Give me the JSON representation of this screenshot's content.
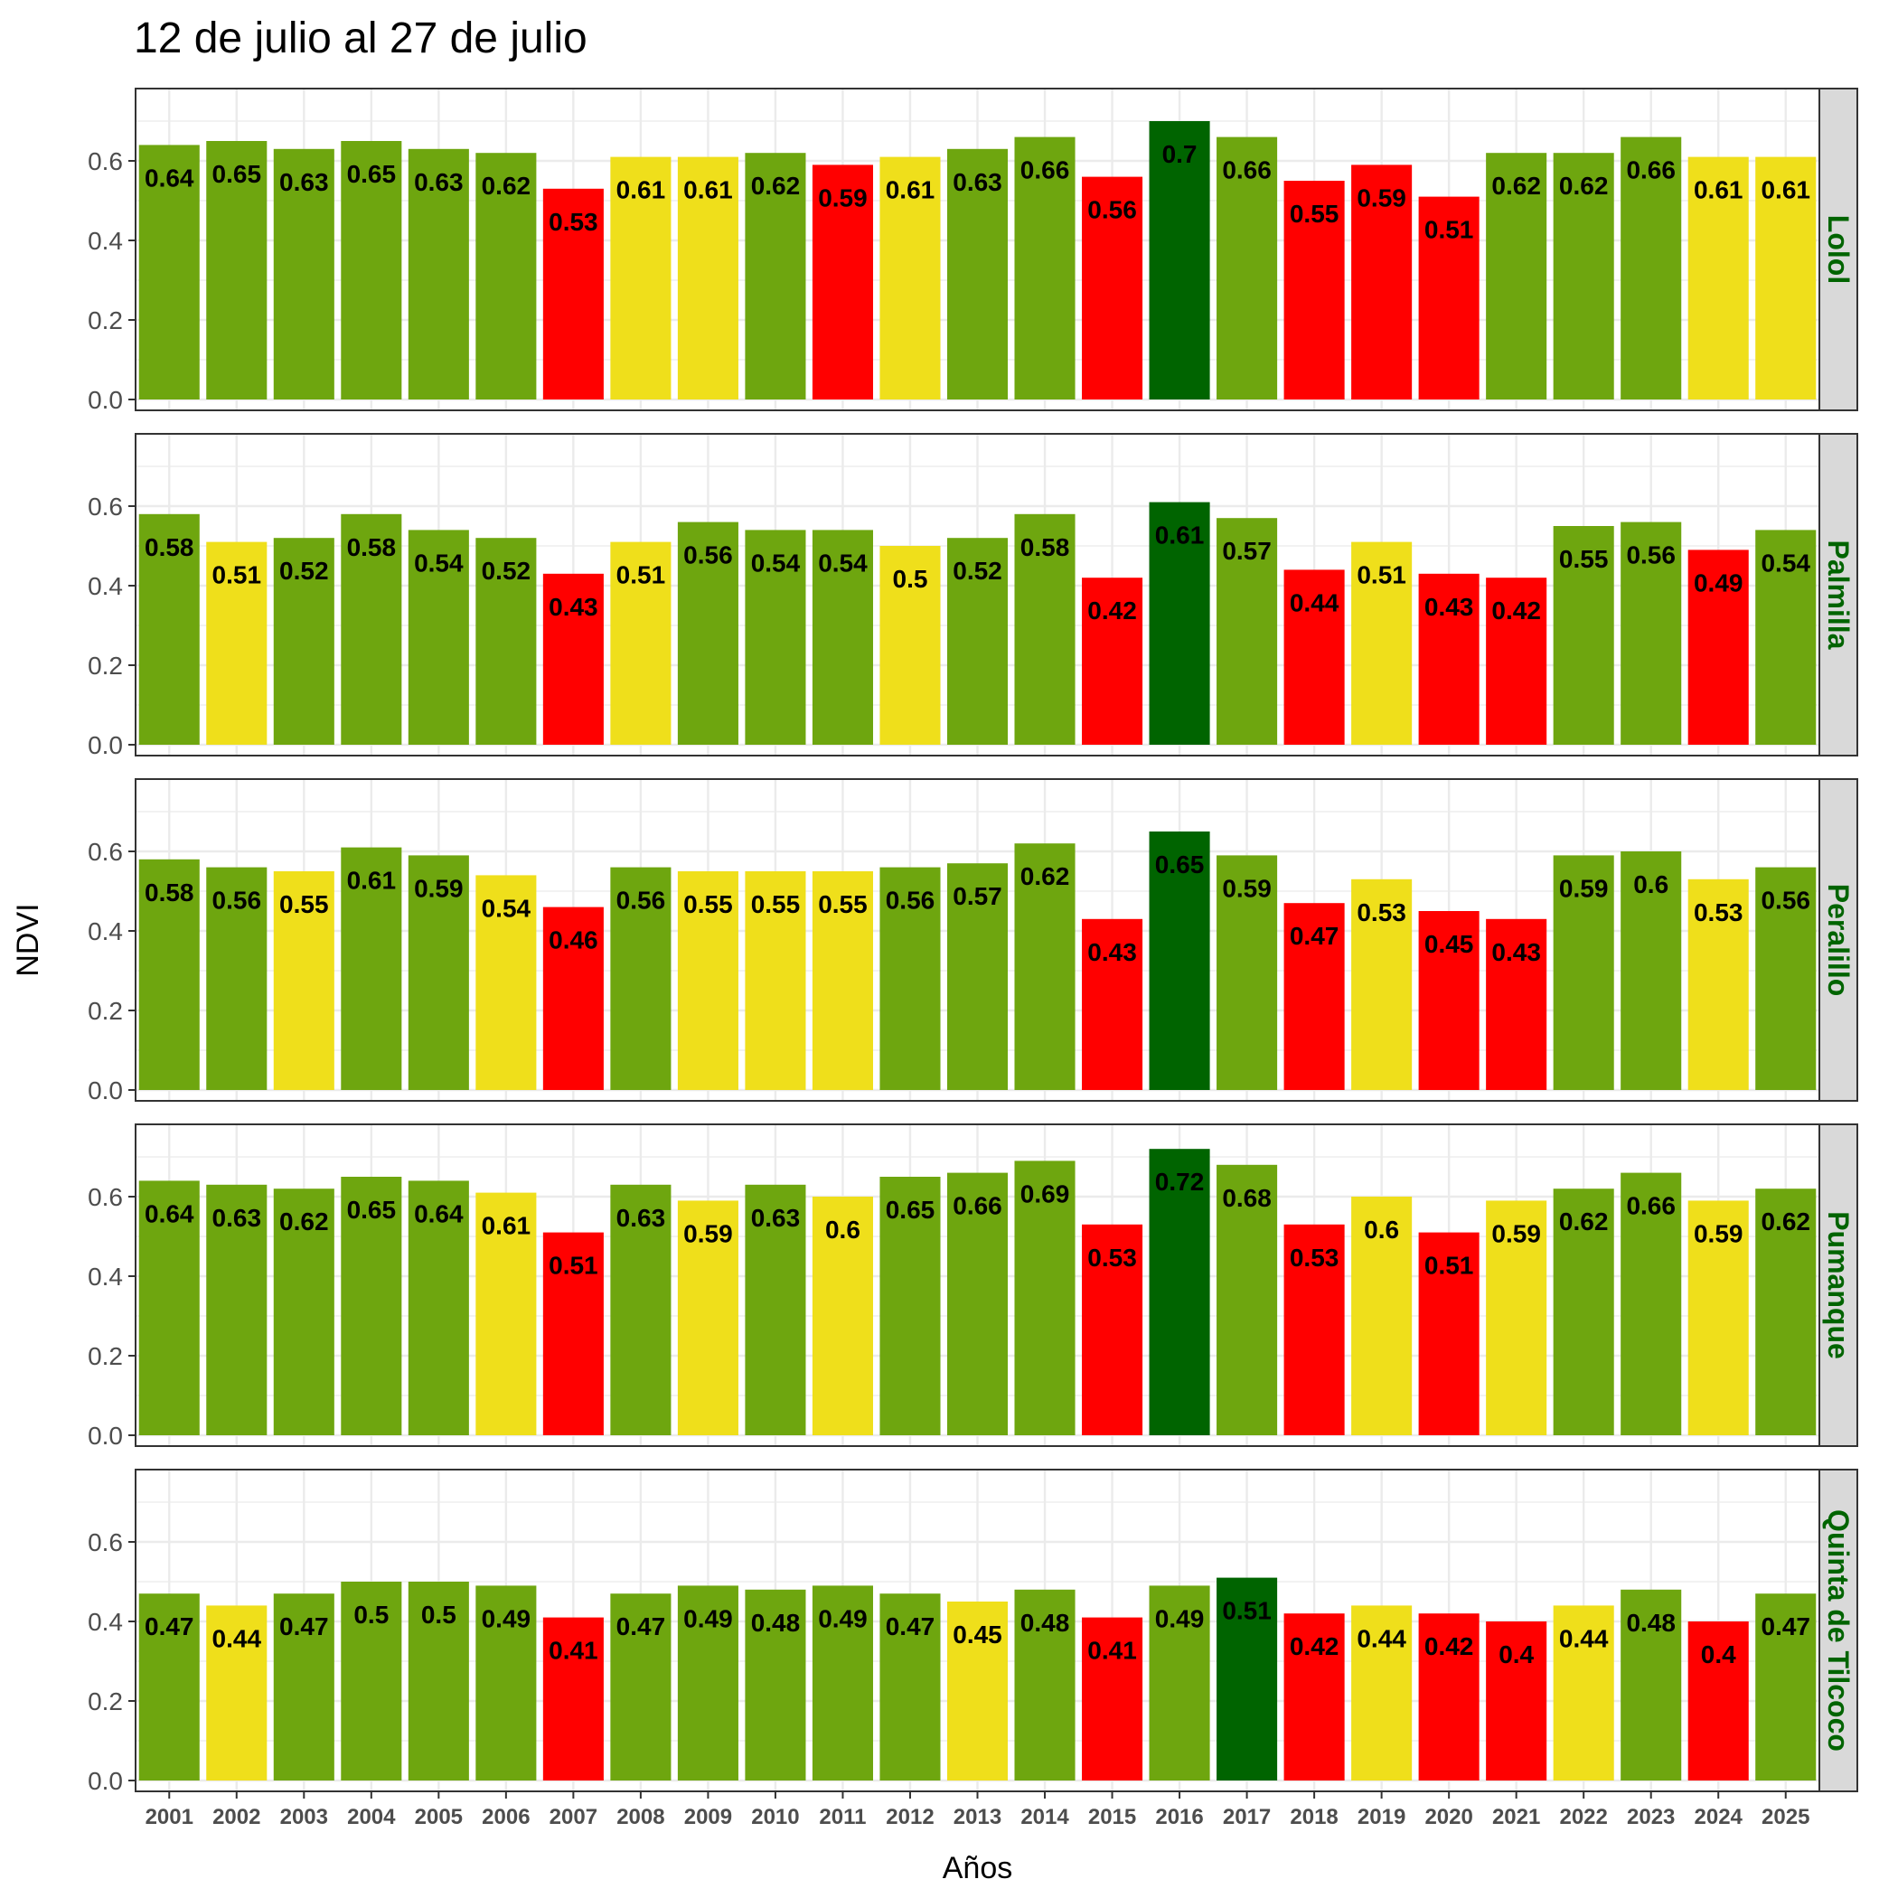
{
  "chart_data": {
    "type": "bar",
    "title": "12 de julio al 27 de julio",
    "xlabel": "Años",
    "ylabel": "NDVI",
    "ylim": [
      0,
      0.75
    ],
    "yticks": [
      "0.0",
      "0.2",
      "0.4",
      "0.6"
    ],
    "grid": true,
    "facet_strip_position": "right",
    "categories": [
      "2001",
      "2002",
      "2003",
      "2004",
      "2005",
      "2006",
      "2007",
      "2008",
      "2009",
      "2010",
      "2011",
      "2012",
      "2013",
      "2014",
      "2015",
      "2016",
      "2017",
      "2018",
      "2019",
      "2020",
      "2021",
      "2022",
      "2023",
      "2024",
      "2025"
    ],
    "colors": {
      "green": "#6ea60f",
      "dark_green": "#006400",
      "yellow": "#efdf1b",
      "red": "#ff0000",
      "strip_background": "#d9d9d9",
      "strip_text": "#006400",
      "grid": "#ebebeb",
      "axis_text": "#4d4d4d"
    },
    "series": [
      {
        "name": "Lolol",
        "values": [
          0.64,
          0.65,
          0.63,
          0.65,
          0.63,
          0.62,
          0.53,
          0.61,
          0.61,
          0.62,
          0.59,
          0.61,
          0.63,
          0.66,
          0.56,
          0.7,
          0.66,
          0.55,
          0.59,
          0.51,
          0.62,
          0.62,
          0.66,
          0.61,
          0.61
        ],
        "labels": [
          "0.64",
          "0.65",
          "0.63",
          "0.65",
          "0.63",
          "0.62",
          "0.53",
          "0.61",
          "0.61",
          "0.62",
          "0.59",
          "0.61",
          "0.63",
          "0.66",
          "0.56",
          "0.7",
          "0.66",
          "0.55",
          "0.59",
          "0.51",
          "0.62",
          "0.62",
          "0.66",
          "0.61",
          "0.61"
        ],
        "bar_colors": [
          "green",
          "green",
          "green",
          "green",
          "green",
          "green",
          "red",
          "yellow",
          "yellow",
          "green",
          "red",
          "yellow",
          "green",
          "green",
          "red",
          "dark_green",
          "green",
          "red",
          "red",
          "red",
          "green",
          "green",
          "green",
          "yellow",
          "yellow"
        ]
      },
      {
        "name": "Palmilla",
        "values": [
          0.58,
          0.51,
          0.52,
          0.58,
          0.54,
          0.52,
          0.43,
          0.51,
          0.56,
          0.54,
          0.54,
          0.5,
          0.52,
          0.58,
          0.42,
          0.61,
          0.57,
          0.44,
          0.51,
          0.43,
          0.42,
          0.55,
          0.56,
          0.49,
          0.54
        ],
        "labels": [
          "0.58",
          "0.51",
          "0.52",
          "0.58",
          "0.54",
          "0.52",
          "0.43",
          "0.51",
          "0.56",
          "0.54",
          "0.54",
          "0.5",
          "0.52",
          "0.58",
          "0.42",
          "0.61",
          "0.57",
          "0.44",
          "0.51",
          "0.43",
          "0.42",
          "0.55",
          "0.56",
          "0.49",
          "0.54"
        ],
        "bar_colors": [
          "green",
          "yellow",
          "green",
          "green",
          "green",
          "green",
          "red",
          "yellow",
          "green",
          "green",
          "green",
          "yellow",
          "green",
          "green",
          "red",
          "dark_green",
          "green",
          "red",
          "yellow",
          "red",
          "red",
          "green",
          "green",
          "red",
          "green"
        ]
      },
      {
        "name": "Peralillo",
        "values": [
          0.58,
          0.56,
          0.55,
          0.61,
          0.59,
          0.54,
          0.46,
          0.56,
          0.55,
          0.55,
          0.55,
          0.56,
          0.57,
          0.62,
          0.43,
          0.65,
          0.59,
          0.47,
          0.53,
          0.45,
          0.43,
          0.59,
          0.6,
          0.53,
          0.56
        ],
        "labels": [
          "0.58",
          "0.56",
          "0.55",
          "0.61",
          "0.59",
          "0.54",
          "0.46",
          "0.56",
          "0.55",
          "0.55",
          "0.55",
          "0.56",
          "0.57",
          "0.62",
          "0.43",
          "0.65",
          "0.59",
          "0.47",
          "0.53",
          "0.45",
          "0.43",
          "0.59",
          "0.6",
          "0.53",
          "0.56"
        ],
        "bar_colors": [
          "green",
          "green",
          "yellow",
          "green",
          "green",
          "yellow",
          "red",
          "green",
          "yellow",
          "yellow",
          "yellow",
          "green",
          "green",
          "green",
          "red",
          "dark_green",
          "green",
          "red",
          "yellow",
          "red",
          "red",
          "green",
          "green",
          "yellow",
          "green"
        ]
      },
      {
        "name": "Pumanque",
        "values": [
          0.64,
          0.63,
          0.62,
          0.65,
          0.64,
          0.61,
          0.51,
          0.63,
          0.59,
          0.63,
          0.6,
          0.65,
          0.66,
          0.69,
          0.53,
          0.72,
          0.68,
          0.53,
          0.6,
          0.51,
          0.59,
          0.62,
          0.66,
          0.59,
          0.62
        ],
        "labels": [
          "0.64",
          "0.63",
          "0.62",
          "0.65",
          "0.64",
          "0.61",
          "0.51",
          "0.63",
          "0.59",
          "0.63",
          "0.6",
          "0.65",
          "0.66",
          "0.69",
          "0.53",
          "0.72",
          "0.68",
          "0.53",
          "0.6",
          "0.51",
          "0.59",
          "0.62",
          "0.66",
          "0.59",
          "0.62"
        ],
        "bar_colors": [
          "green",
          "green",
          "green",
          "green",
          "green",
          "yellow",
          "red",
          "green",
          "yellow",
          "green",
          "yellow",
          "green",
          "green",
          "green",
          "red",
          "dark_green",
          "green",
          "red",
          "yellow",
          "red",
          "yellow",
          "green",
          "green",
          "yellow",
          "green"
        ]
      },
      {
        "name": "Quinta de Tilcoco",
        "values": [
          0.47,
          0.44,
          0.47,
          0.5,
          0.5,
          0.49,
          0.41,
          0.47,
          0.49,
          0.48,
          0.49,
          0.47,
          0.45,
          0.48,
          0.41,
          0.49,
          0.51,
          0.42,
          0.44,
          0.42,
          0.4,
          0.44,
          0.48,
          0.4,
          0.47
        ],
        "labels": [
          "0.47",
          "0.44",
          "0.47",
          "0.5",
          "0.5",
          "0.49",
          "0.41",
          "0.47",
          "0.49",
          "0.48",
          "0.49",
          "0.47",
          "0.45",
          "0.48",
          "0.41",
          "0.49",
          "0.51",
          "0.42",
          "0.44",
          "0.42",
          "0.4",
          "0.44",
          "0.48",
          "0.4",
          "0.47"
        ],
        "bar_colors": [
          "green",
          "yellow",
          "green",
          "green",
          "green",
          "green",
          "red",
          "green",
          "green",
          "green",
          "green",
          "green",
          "yellow",
          "green",
          "red",
          "green",
          "dark_green",
          "red",
          "yellow",
          "red",
          "red",
          "yellow",
          "green",
          "red",
          "green"
        ]
      }
    ]
  }
}
